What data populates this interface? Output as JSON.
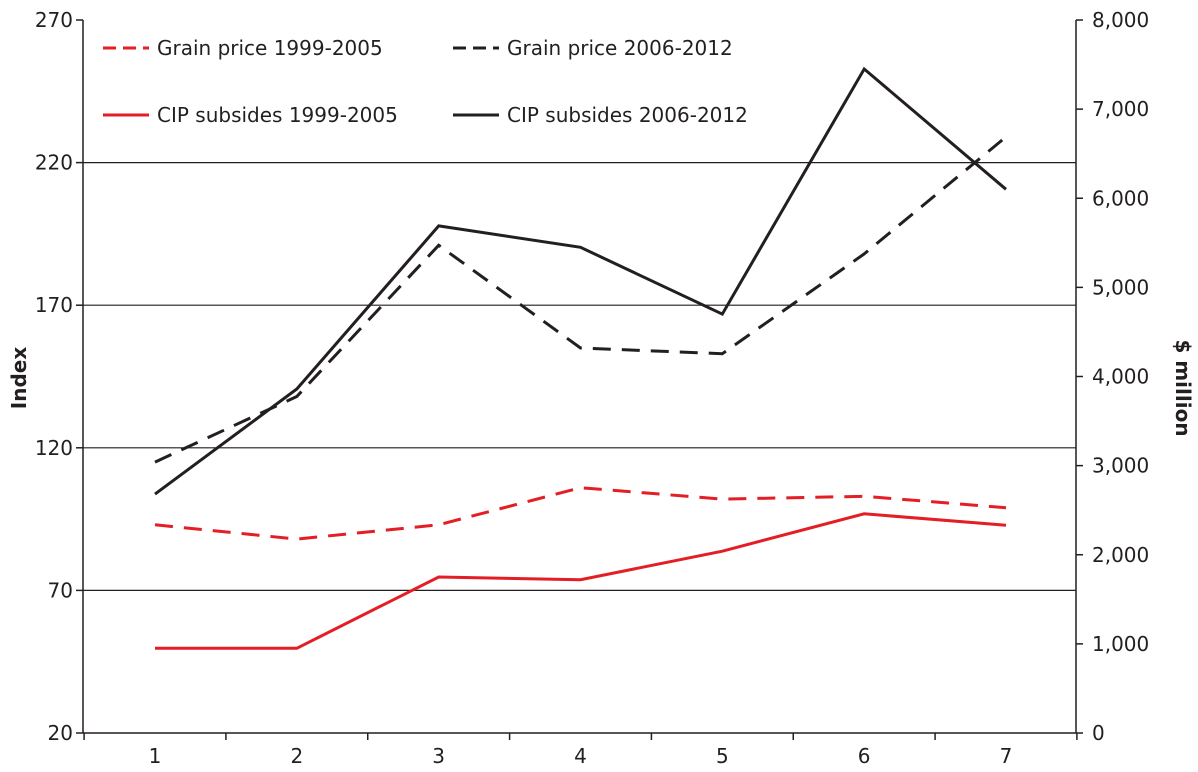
{
  "chart_data": {
    "type": "line",
    "categories": [
      "1",
      "2",
      "3",
      "4",
      "5",
      "6",
      "7"
    ],
    "left_axis": {
      "label": "Index",
      "range": [
        20,
        270
      ],
      "ticks": [
        20,
        70,
        120,
        170,
        220,
        270
      ]
    },
    "right_axis": {
      "label": "$ million",
      "range": [
        0,
        8000
      ],
      "ticks": [
        0,
        1000,
        2000,
        3000,
        4000,
        5000,
        6000,
        7000,
        8000
      ],
      "tick_labels": [
        "0",
        "1,000",
        "2,000",
        "3,000",
        "4,000",
        "5,000",
        "6,000",
        "7,000",
        "8,000"
      ]
    },
    "gridlines": "horizontal at left-axis ticks",
    "legend_position": "top-left",
    "series": [
      {
        "name": "Grain price 1999-2005",
        "axis": "left",
        "style": "dashed",
        "color": "#e31e24",
        "values": [
          93,
          88,
          93,
          106,
          102,
          103,
          99
        ]
      },
      {
        "name": "Grain price 2006-2012",
        "axis": "left",
        "style": "dashed",
        "color": "#231f20",
        "values": [
          115,
          138,
          191,
          155,
          153,
          188,
          229
        ]
      },
      {
        "name": "CIP subsides 1999-2005",
        "axis": "right",
        "style": "solid",
        "color": "#e31e24",
        "values": [
          950,
          950,
          1750,
          1720,
          2040,
          2460,
          2330
        ]
      },
      {
        "name": "CIP subsides 2006-2012",
        "axis": "right",
        "style": "solid",
        "color": "#231f20",
        "values": [
          2680,
          3860,
          5690,
          5450,
          4700,
          7450,
          6100
        ]
      }
    ]
  }
}
